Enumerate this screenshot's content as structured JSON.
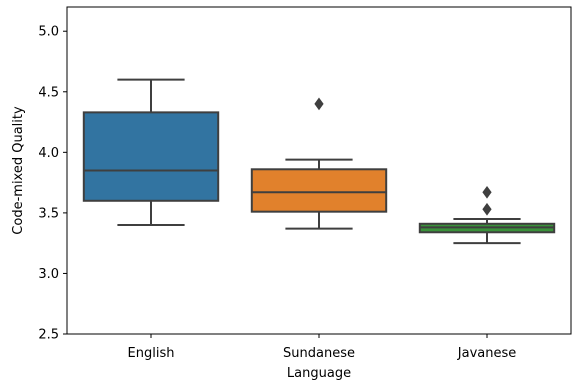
{
  "chart_data": {
    "type": "box",
    "xlabel": "Language",
    "ylabel": "Code-mixed Quality",
    "ylim": [
      2.5,
      5.2
    ],
    "yticks": [
      2.5,
      3.0,
      3.5,
      4.0,
      4.5,
      5.0
    ],
    "ytick_labels": [
      "2.5",
      "3.0",
      "3.5",
      "4.0",
      "4.5",
      "5.0"
    ],
    "grid": false,
    "categories": [
      "English",
      "Sundanese",
      "Javanese"
    ],
    "boxes": [
      {
        "category": "English",
        "color": "#3274a1",
        "whisker_low": 3.4,
        "q1": 3.6,
        "median": 3.85,
        "q3": 4.33,
        "whisker_high": 4.6,
        "outliers": []
      },
      {
        "category": "Sundanese",
        "color": "#e1812c",
        "whisker_low": 3.37,
        "q1": 3.51,
        "median": 3.67,
        "q3": 3.86,
        "whisker_high": 3.94,
        "outliers": [
          4.4
        ]
      },
      {
        "category": "Javanese",
        "color": "#3a923a",
        "whisker_low": 3.25,
        "q1": 3.34,
        "median": 3.38,
        "q3": 3.41,
        "whisker_high": 3.45,
        "outliers": [
          3.53,
          3.67
        ]
      }
    ]
  }
}
